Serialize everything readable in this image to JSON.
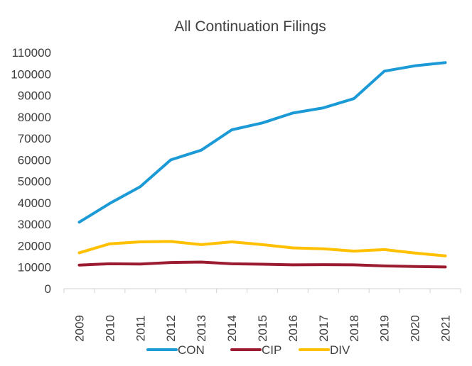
{
  "chart_data": {
    "type": "line",
    "title": "All Continuation Filings",
    "xlabel": "",
    "ylabel": "",
    "categories": [
      "2009",
      "2010",
      "2011",
      "2012",
      "2013",
      "2014",
      "2015",
      "2016",
      "2017",
      "2018",
      "2019",
      "2020",
      "2021"
    ],
    "y_ticks": [
      "0",
      "10000",
      "20000",
      "30000",
      "40000",
      "50000",
      "60000",
      "70000",
      "80000",
      "90000",
      "100000",
      "110000"
    ],
    "ylim": [
      0,
      110000
    ],
    "grid": false,
    "legend_position": "bottom",
    "series": [
      {
        "name": "CON",
        "color": "#1B9AD6",
        "values": [
          31000,
          39700,
          47500,
          60000,
          64500,
          74000,
          77200,
          81800,
          84200,
          88500,
          101300,
          103800,
          105300
        ]
      },
      {
        "name": "CIP",
        "color": "#9B1B30",
        "values": [
          11000,
          11600,
          11500,
          12200,
          12400,
          11600,
          11400,
          11100,
          11200,
          11100,
          10600,
          10300,
          10100
        ]
      },
      {
        "name": "DIV",
        "color": "#FFC000",
        "values": [
          16700,
          20900,
          21800,
          22000,
          20500,
          21800,
          20500,
          19000,
          18600,
          17500,
          18200,
          16600,
          15300
        ]
      }
    ]
  }
}
